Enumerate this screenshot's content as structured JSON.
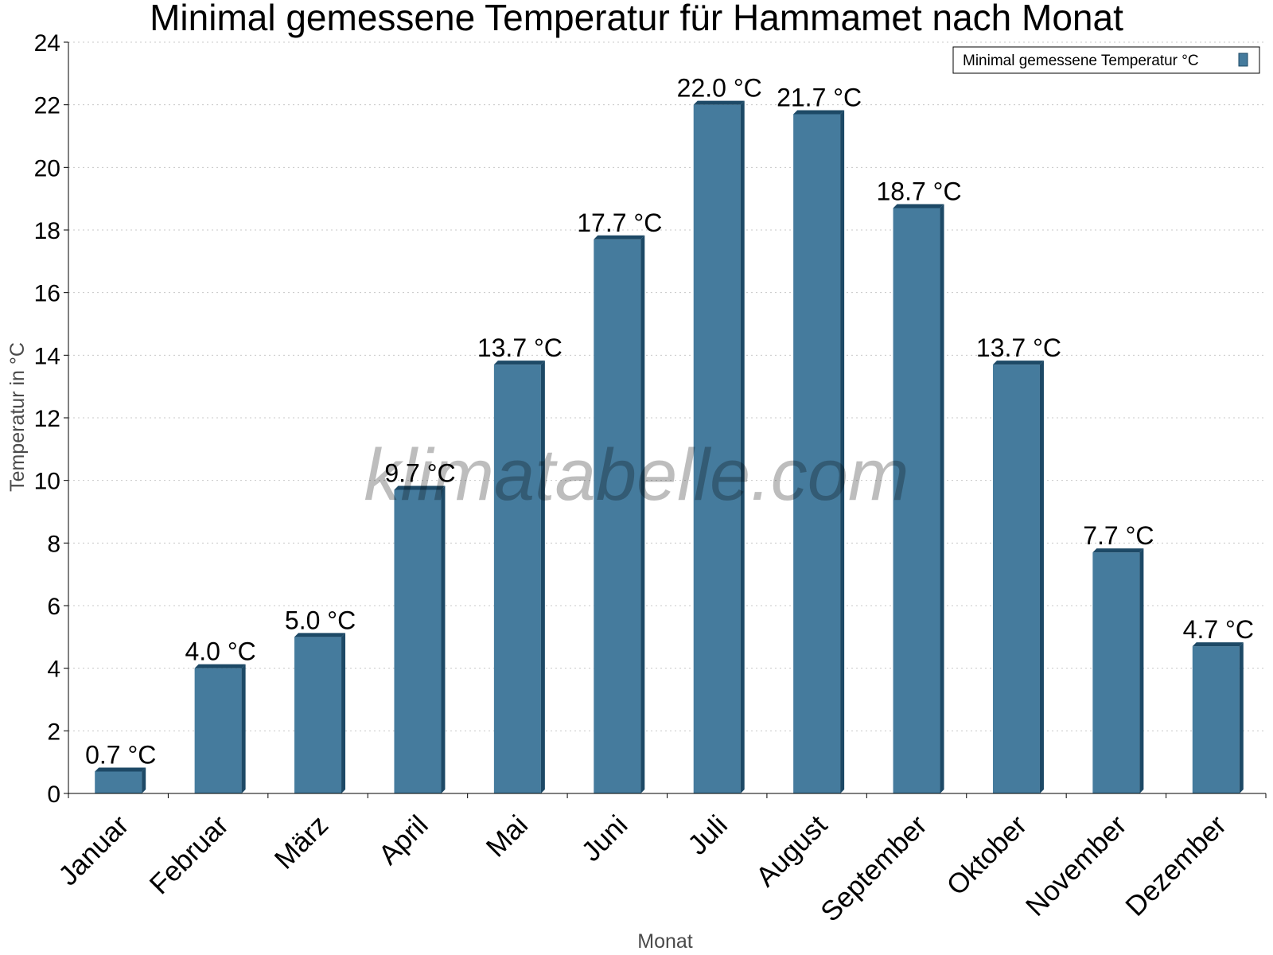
{
  "chart_data": {
    "type": "bar",
    "title": "Minimal gemessene Temperatur für Hammamet nach Monat",
    "xlabel": "Monat",
    "ylabel": "Temperatur in °C",
    "ylim": [
      0,
      24
    ],
    "ytick_step": 2,
    "grid": true,
    "legend_position": "top-right",
    "categories": [
      "Januar",
      "Februar",
      "März",
      "April",
      "Mai",
      "Juni",
      "Juli",
      "August",
      "September",
      "Oktober",
      "November",
      "Dezember"
    ],
    "series": [
      {
        "name": "Minimal gemessene Temperatur °C",
        "values": [
          0.7,
          4.0,
          5.0,
          9.7,
          13.7,
          17.7,
          22.0,
          21.7,
          18.7,
          13.7,
          7.7,
          4.7
        ],
        "data_labels": [
          "0.7 °C",
          "4.0 °C",
          "5.0 °C",
          "9.7 °C",
          "13.7 °C",
          "17.7 °C",
          "22.0 °C",
          "21.7 °C",
          "18.7 °C",
          "13.7 °C",
          "7.7 °C",
          "4.7 °C"
        ],
        "color": "#457b9d",
        "side_color": "#1d4966"
      }
    ],
    "watermark": "klimatabelle.com"
  }
}
